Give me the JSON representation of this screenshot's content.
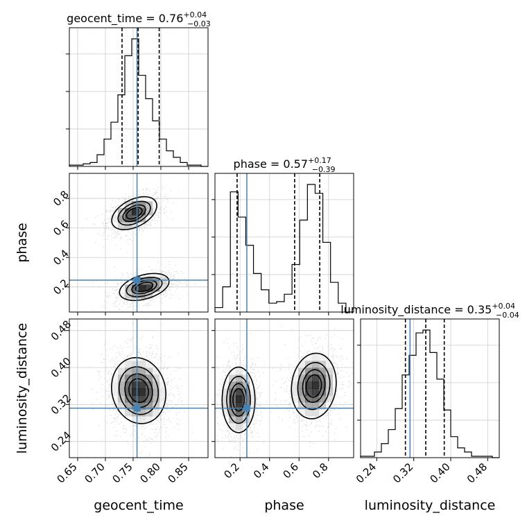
{
  "chart_data": {
    "type": "corner",
    "parameters": [
      "geocent_time",
      "phase",
      "luminosity_distance"
    ],
    "truths": [
      0.757,
      0.246,
      0.312
    ],
    "axis_ranges": {
      "geocent_time": [
        0.635,
        0.885
      ],
      "phase": [
        0.03,
        0.97
      ],
      "luminosity_distance": [
        0.205,
        0.505
      ]
    },
    "ticks": {
      "geocent_time": [
        "0.65",
        "0.70",
        "0.75",
        "0.80",
        "0.85"
      ],
      "phase": [
        "0.2",
        "0.4",
        "0.6",
        "0.8"
      ],
      "luminosity_distance": [
        "0.24",
        "0.32",
        "0.40",
        "0.48"
      ]
    },
    "tick_values": {
      "geocent_time": [
        0.65,
        0.7,
        0.75,
        0.8,
        0.85
      ],
      "phase": [
        0.2,
        0.4,
        0.6,
        0.8
      ],
      "luminosity_distance": [
        0.24,
        0.32,
        0.4,
        0.48
      ]
    },
    "diagonal": [
      {
        "param": "geocent_time",
        "title_main": "geocent_time = 0.76",
        "title_sup": "+0.04",
        "title_sub": "−0.03",
        "quantiles": [
          0.73,
          0.759,
          0.797
        ],
        "hist": [
          1,
          1,
          2,
          3,
          9,
          21,
          34,
          55,
          85,
          98,
          70,
          52,
          35,
          21,
          12,
          7,
          3,
          1,
          1,
          0
        ]
      },
      {
        "param": "phase",
        "title_main": "phase = 0.57",
        "title_sup": "+0.17",
        "title_sub": "−0.39",
        "quantiles": [
          0.18,
          0.57,
          0.74
        ],
        "hist": [
          3,
          17,
          81,
          64,
          45,
          26,
          15,
          6,
          7,
          12,
          32,
          62,
          86,
          80,
          47,
          20,
          6,
          0
        ]
      },
      {
        "param": "luminosity_distance",
        "title_main": "luminosity_distance = 0.35",
        "title_sup": "+0.04",
        "title_sub": "−0.04",
        "quantiles": [
          0.302,
          0.346,
          0.386
        ],
        "hist": [
          1,
          1,
          4,
          10,
          20,
          35,
          59,
          73,
          89,
          91,
          75,
          56,
          34,
          15,
          7,
          4,
          1,
          1,
          1,
          0
        ]
      }
    ],
    "pairs": [
      {
        "x": "geocent_time",
        "y": "phase",
        "modes": [
          {
            "cx": 0.752,
            "cy": 0.7,
            "sx": 0.02,
            "sy": 0.055,
            "rho": 0.45,
            "w": 0.5
          },
          {
            "cx": 0.77,
            "cy": 0.2,
            "sx": 0.022,
            "sy": 0.045,
            "rho": 0.4,
            "w": 0.5
          }
        ]
      },
      {
        "x": "geocent_time",
        "y": "luminosity_distance",
        "modes": [
          {
            "cx": 0.76,
            "cy": 0.35,
            "sx": 0.024,
            "sy": 0.035,
            "rho": -0.1,
            "w": 1.0
          }
        ]
      },
      {
        "x": "phase",
        "y": "luminosity_distance",
        "modes": [
          {
            "cx": 0.19,
            "cy": 0.33,
            "sx": 0.055,
            "sy": 0.035,
            "rho": 0.0,
            "w": 0.5
          },
          {
            "cx": 0.7,
            "cy": 0.36,
            "sx": 0.075,
            "sy": 0.035,
            "rho": 0.1,
            "w": 0.5
          }
        ]
      }
    ],
    "grid": true,
    "truth_color": "#4682b4",
    "line_color": "#000000",
    "scatter_color": "#9a9a9a"
  }
}
